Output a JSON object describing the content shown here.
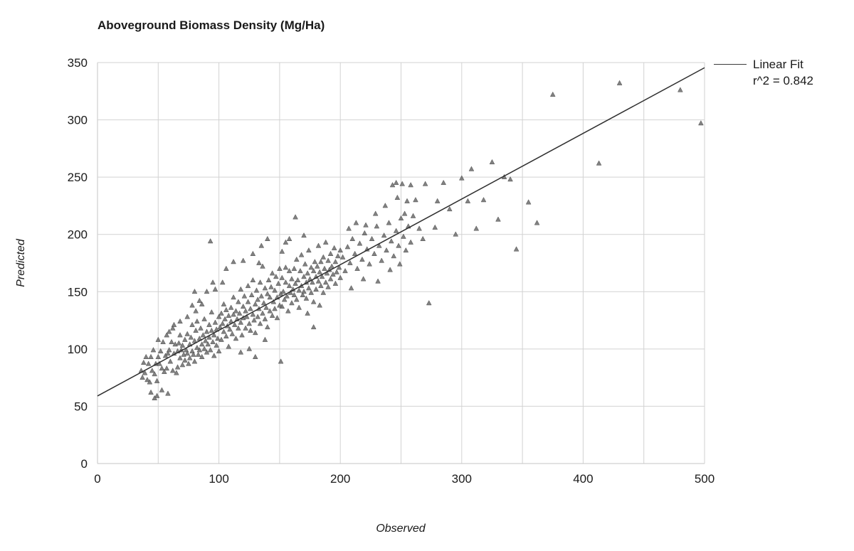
{
  "chart_data": {
    "type": "scatter",
    "title": "Aboveground Biomass Density (Mg/Ha)",
    "xlabel": "Observed",
    "ylabel": "Predicted",
    "xlim": [
      0,
      500
    ],
    "ylim": [
      0,
      350
    ],
    "x_tick_labels": [
      0,
      100,
      200,
      300,
      400,
      500
    ],
    "y_tick_labels": [
      0,
      50,
      100,
      150,
      200,
      250,
      300,
      350
    ],
    "grid_step_x": 50,
    "grid_step_y": 50,
    "grid_on": true,
    "legend_position": "top-right",
    "colors": {
      "grid": "#d2d2d2",
      "axis": "#c4c4c4",
      "text": "#1a1a1a",
      "marker": "#6b6b6b",
      "marker_edge": "#4f4f4f",
      "fit_line": "#2f2f2f",
      "background": "#ffffff"
    },
    "marker": {
      "shape": "triangle-up",
      "color": "#6b6b6b"
    },
    "fit_line": {
      "x": [
        0,
        500
      ],
      "y": [
        59,
        345.5
      ],
      "label": "Linear Fit",
      "r2_label": "r^2 = 0.842"
    },
    "points": [
      [
        36,
        81
      ],
      [
        37,
        75
      ],
      [
        38,
        88
      ],
      [
        39,
        79
      ],
      [
        40,
        93
      ],
      [
        41,
        73
      ],
      [
        42,
        87
      ],
      [
        43,
        71
      ],
      [
        44,
        93
      ],
      [
        45,
        81
      ],
      [
        46,
        99
      ],
      [
        47,
        78
      ],
      [
        48,
        87
      ],
      [
        49,
        72
      ],
      [
        50,
        93
      ],
      [
        51,
        87
      ],
      [
        52,
        98
      ],
      [
        53,
        83
      ],
      [
        54,
        106
      ],
      [
        55,
        80
      ],
      [
        56,
        94
      ],
      [
        57,
        83
      ],
      [
        58,
        96
      ],
      [
        59,
        99
      ],
      [
        60,
        89
      ],
      [
        61,
        106
      ],
      [
        62,
        81
      ],
      [
        63,
        96
      ],
      [
        64,
        104
      ],
      [
        65,
        79
      ],
      [
        44,
        62
      ],
      [
        49,
        59
      ],
      [
        53,
        64
      ],
      [
        58,
        61
      ],
      [
        47,
        57
      ],
      [
        57,
        112
      ],
      [
        62,
        118
      ],
      [
        50,
        108
      ],
      [
        63,
        121
      ],
      [
        68,
        124
      ],
      [
        59,
        115
      ],
      [
        66,
        98
      ],
      [
        66,
        84
      ],
      [
        67,
        105
      ],
      [
        68,
        92
      ],
      [
        68,
        112
      ],
      [
        69,
        99
      ],
      [
        70,
        86
      ],
      [
        70,
        103
      ],
      [
        71,
        95
      ],
      [
        72,
        108
      ],
      [
        72,
        90
      ],
      [
        73,
        99
      ],
      [
        74,
        113
      ],
      [
        74,
        96
      ],
      [
        75,
        87
      ],
      [
        76,
        104
      ],
      [
        76,
        92
      ],
      [
        77,
        110
      ],
      [
        78,
        98
      ],
      [
        78,
        121
      ],
      [
        79,
        95
      ],
      [
        80,
        107
      ],
      [
        80,
        89
      ],
      [
        81,
        116
      ],
      [
        82,
        101
      ],
      [
        82,
        124
      ],
      [
        83,
        95
      ],
      [
        84,
        109
      ],
      [
        84,
        99
      ],
      [
        85,
        118
      ],
      [
        86,
        104
      ],
      [
        86,
        93
      ],
      [
        87,
        112
      ],
      [
        88,
        100
      ],
      [
        88,
        126
      ],
      [
        89,
        107
      ],
      [
        90,
        97
      ],
      [
        90,
        115
      ],
      [
        91,
        104
      ],
      [
        92,
        121
      ],
      [
        92,
        110
      ],
      [
        93,
        99
      ],
      [
        94,
        116
      ],
      [
        94,
        132
      ],
      [
        95,
        106
      ],
      [
        96,
        94
      ],
      [
        96,
        112
      ],
      [
        97,
        123
      ],
      [
        98,
        103
      ],
      [
        98,
        117
      ],
      [
        99,
        109
      ],
      [
        100,
        98
      ],
      [
        100,
        128
      ],
      [
        93,
        194
      ],
      [
        95,
        158
      ],
      [
        90,
        150
      ],
      [
        97,
        152
      ],
      [
        80,
        150
      ],
      [
        86,
        139
      ],
      [
        74,
        128
      ],
      [
        78,
        138
      ],
      [
        84,
        142
      ],
      [
        81,
        133
      ],
      [
        101,
        119
      ],
      [
        102,
        108
      ],
      [
        102,
        131
      ],
      [
        103,
        122
      ],
      [
        104,
        115
      ],
      [
        104,
        139
      ],
      [
        105,
        126
      ],
      [
        106,
        111
      ],
      [
        106,
        134
      ],
      [
        107,
        120
      ],
      [
        108,
        129
      ],
      [
        108,
        102
      ],
      [
        109,
        117
      ],
      [
        110,
        136
      ],
      [
        110,
        124
      ],
      [
        111,
        113
      ],
      [
        112,
        130
      ],
      [
        112,
        145
      ],
      [
        113,
        121
      ],
      [
        114,
        109
      ],
      [
        114,
        133
      ],
      [
        115,
        126
      ],
      [
        116,
        141
      ],
      [
        116,
        118
      ],
      [
        117,
        131
      ],
      [
        118,
        123
      ],
      [
        118,
        152
      ],
      [
        119,
        112
      ],
      [
        120,
        137
      ],
      [
        120,
        127
      ],
      [
        121,
        146
      ],
      [
        122,
        118
      ],
      [
        122,
        133
      ],
      [
        123,
        128
      ],
      [
        124,
        141
      ],
      [
        124,
        155
      ],
      [
        125,
        122
      ],
      [
        126,
        135
      ],
      [
        126,
        116
      ],
      [
        127,
        147
      ],
      [
        128,
        130
      ],
      [
        128,
        160
      ],
      [
        129,
        125
      ],
      [
        130,
        139
      ],
      [
        130,
        114
      ],
      [
        131,
        151
      ],
      [
        132,
        128
      ],
      [
        132,
        143
      ],
      [
        133,
        135
      ],
      [
        134,
        122
      ],
      [
        134,
        158
      ],
      [
        135,
        146
      ],
      [
        136,
        131
      ],
      [
        136,
        172
      ],
      [
        137,
        140
      ],
      [
        138,
        126
      ],
      [
        138,
        153
      ],
      [
        139,
        136
      ],
      [
        140,
        148
      ],
      [
        140,
        119
      ],
      [
        141,
        160
      ],
      [
        142,
        133
      ],
      [
        142,
        145
      ],
      [
        143,
        154
      ],
      [
        144,
        129
      ],
      [
        144,
        166
      ],
      [
        145,
        141
      ],
      [
        146,
        151
      ],
      [
        146,
        135
      ],
      [
        147,
        163
      ],
      [
        148,
        145
      ],
      [
        148,
        127
      ],
      [
        149,
        157
      ],
      [
        150,
        138
      ],
      [
        150,
        170
      ],
      [
        120,
        177
      ],
      [
        128,
        183
      ],
      [
        135,
        190
      ],
      [
        140,
        196
      ],
      [
        133,
        175
      ],
      [
        118,
        97
      ],
      [
        125,
        100
      ],
      [
        138,
        108
      ],
      [
        130,
        93
      ],
      [
        151,
        89
      ],
      [
        106,
        170
      ],
      [
        112,
        176
      ],
      [
        103,
        158
      ],
      [
        151,
        148
      ],
      [
        152,
        137
      ],
      [
        152,
        162
      ],
      [
        153,
        150
      ],
      [
        154,
        143
      ],
      [
        155,
        158
      ],
      [
        155,
        171
      ],
      [
        156,
        146
      ],
      [
        157,
        133
      ],
      [
        158,
        155
      ],
      [
        158,
        168
      ],
      [
        159,
        149
      ],
      [
        160,
        161
      ],
      [
        160,
        140
      ],
      [
        161,
        152
      ],
      [
        162,
        170
      ],
      [
        162,
        147
      ],
      [
        163,
        157
      ],
      [
        164,
        143
      ],
      [
        164,
        178
      ],
      [
        165,
        160
      ],
      [
        166,
        151
      ],
      [
        166,
        136
      ],
      [
        167,
        168
      ],
      [
        168,
        155
      ],
      [
        168,
        182
      ],
      [
        169,
        147
      ],
      [
        170,
        163
      ],
      [
        170,
        150
      ],
      [
        171,
        174
      ],
      [
        172,
        158
      ],
      [
        172,
        144
      ],
      [
        173,
        166
      ],
      [
        174,
        153
      ],
      [
        174,
        186
      ],
      [
        175,
        161
      ],
      [
        176,
        149
      ],
      [
        176,
        171
      ],
      [
        177,
        158
      ],
      [
        178,
        168
      ],
      [
        178,
        141
      ],
      [
        179,
        176
      ],
      [
        180,
        163
      ],
      [
        180,
        152
      ],
      [
        181,
        172
      ],
      [
        182,
        159
      ],
      [
        182,
        190
      ],
      [
        183,
        167
      ],
      [
        184,
        155
      ],
      [
        184,
        176
      ],
      [
        185,
        163
      ],
      [
        186,
        149
      ],
      [
        186,
        180
      ],
      [
        187,
        170
      ],
      [
        188,
        158
      ],
      [
        188,
        193
      ],
      [
        189,
        166
      ],
      [
        190,
        177
      ],
      [
        190,
        154
      ],
      [
        191,
        169
      ],
      [
        192,
        183
      ],
      [
        192,
        161
      ],
      [
        193,
        172
      ],
      [
        194,
        165
      ],
      [
        195,
        188
      ],
      [
        196,
        157
      ],
      [
        196,
        176
      ],
      [
        197,
        167
      ],
      [
        198,
        181
      ],
      [
        199,
        171
      ],
      [
        200,
        162
      ],
      [
        200,
        186
      ],
      [
        163,
        215
      ],
      [
        158,
        196
      ],
      [
        170,
        199
      ],
      [
        173,
        131
      ],
      [
        183,
        138
      ],
      [
        178,
        119
      ],
      [
        155,
        193
      ],
      [
        152,
        185
      ],
      [
        202,
        180
      ],
      [
        204,
        168
      ],
      [
        206,
        189
      ],
      [
        208,
        175
      ],
      [
        210,
        196
      ],
      [
        212,
        183
      ],
      [
        214,
        170
      ],
      [
        216,
        192
      ],
      [
        218,
        178
      ],
      [
        220,
        201
      ],
      [
        222,
        187
      ],
      [
        224,
        174
      ],
      [
        226,
        196
      ],
      [
        228,
        183
      ],
      [
        230,
        207
      ],
      [
        232,
        190
      ],
      [
        234,
        177
      ],
      [
        236,
        199
      ],
      [
        238,
        186
      ],
      [
        240,
        210
      ],
      [
        242,
        194
      ],
      [
        244,
        181
      ],
      [
        246,
        203
      ],
      [
        248,
        190
      ],
      [
        250,
        214
      ],
      [
        252,
        198
      ],
      [
        254,
        186
      ],
      [
        256,
        207
      ],
      [
        258,
        193
      ],
      [
        260,
        216
      ],
      [
        207,
        205
      ],
      [
        213,
        210
      ],
      [
        221,
        208
      ],
      [
        229,
        218
      ],
      [
        237,
        225
      ],
      [
        243,
        243
      ],
      [
        247,
        232
      ],
      [
        251,
        244
      ],
      [
        255,
        229
      ],
      [
        258,
        243
      ],
      [
        246,
        245
      ],
      [
        253,
        218
      ],
      [
        209,
        153
      ],
      [
        219,
        161
      ],
      [
        231,
        159
      ],
      [
        241,
        169
      ],
      [
        249,
        174
      ],
      [
        262,
        230
      ],
      [
        265,
        205
      ],
      [
        268,
        196
      ],
      [
        270,
        244
      ],
      [
        273,
        140
      ],
      [
        278,
        206
      ],
      [
        280,
        229
      ],
      [
        285,
        245
      ],
      [
        290,
        222
      ],
      [
        295,
        200
      ],
      [
        300,
        249
      ],
      [
        305,
        229
      ],
      [
        308,
        257
      ],
      [
        312,
        205
      ],
      [
        318,
        230
      ],
      [
        325,
        263
      ],
      [
        330,
        213
      ],
      [
        335,
        250
      ],
      [
        340,
        248
      ],
      [
        345,
        187
      ],
      [
        355,
        228
      ],
      [
        362,
        210
      ],
      [
        375,
        322
      ],
      [
        413,
        262
      ],
      [
        430,
        332
      ],
      [
        480,
        326
      ],
      [
        497,
        297
      ]
    ]
  }
}
